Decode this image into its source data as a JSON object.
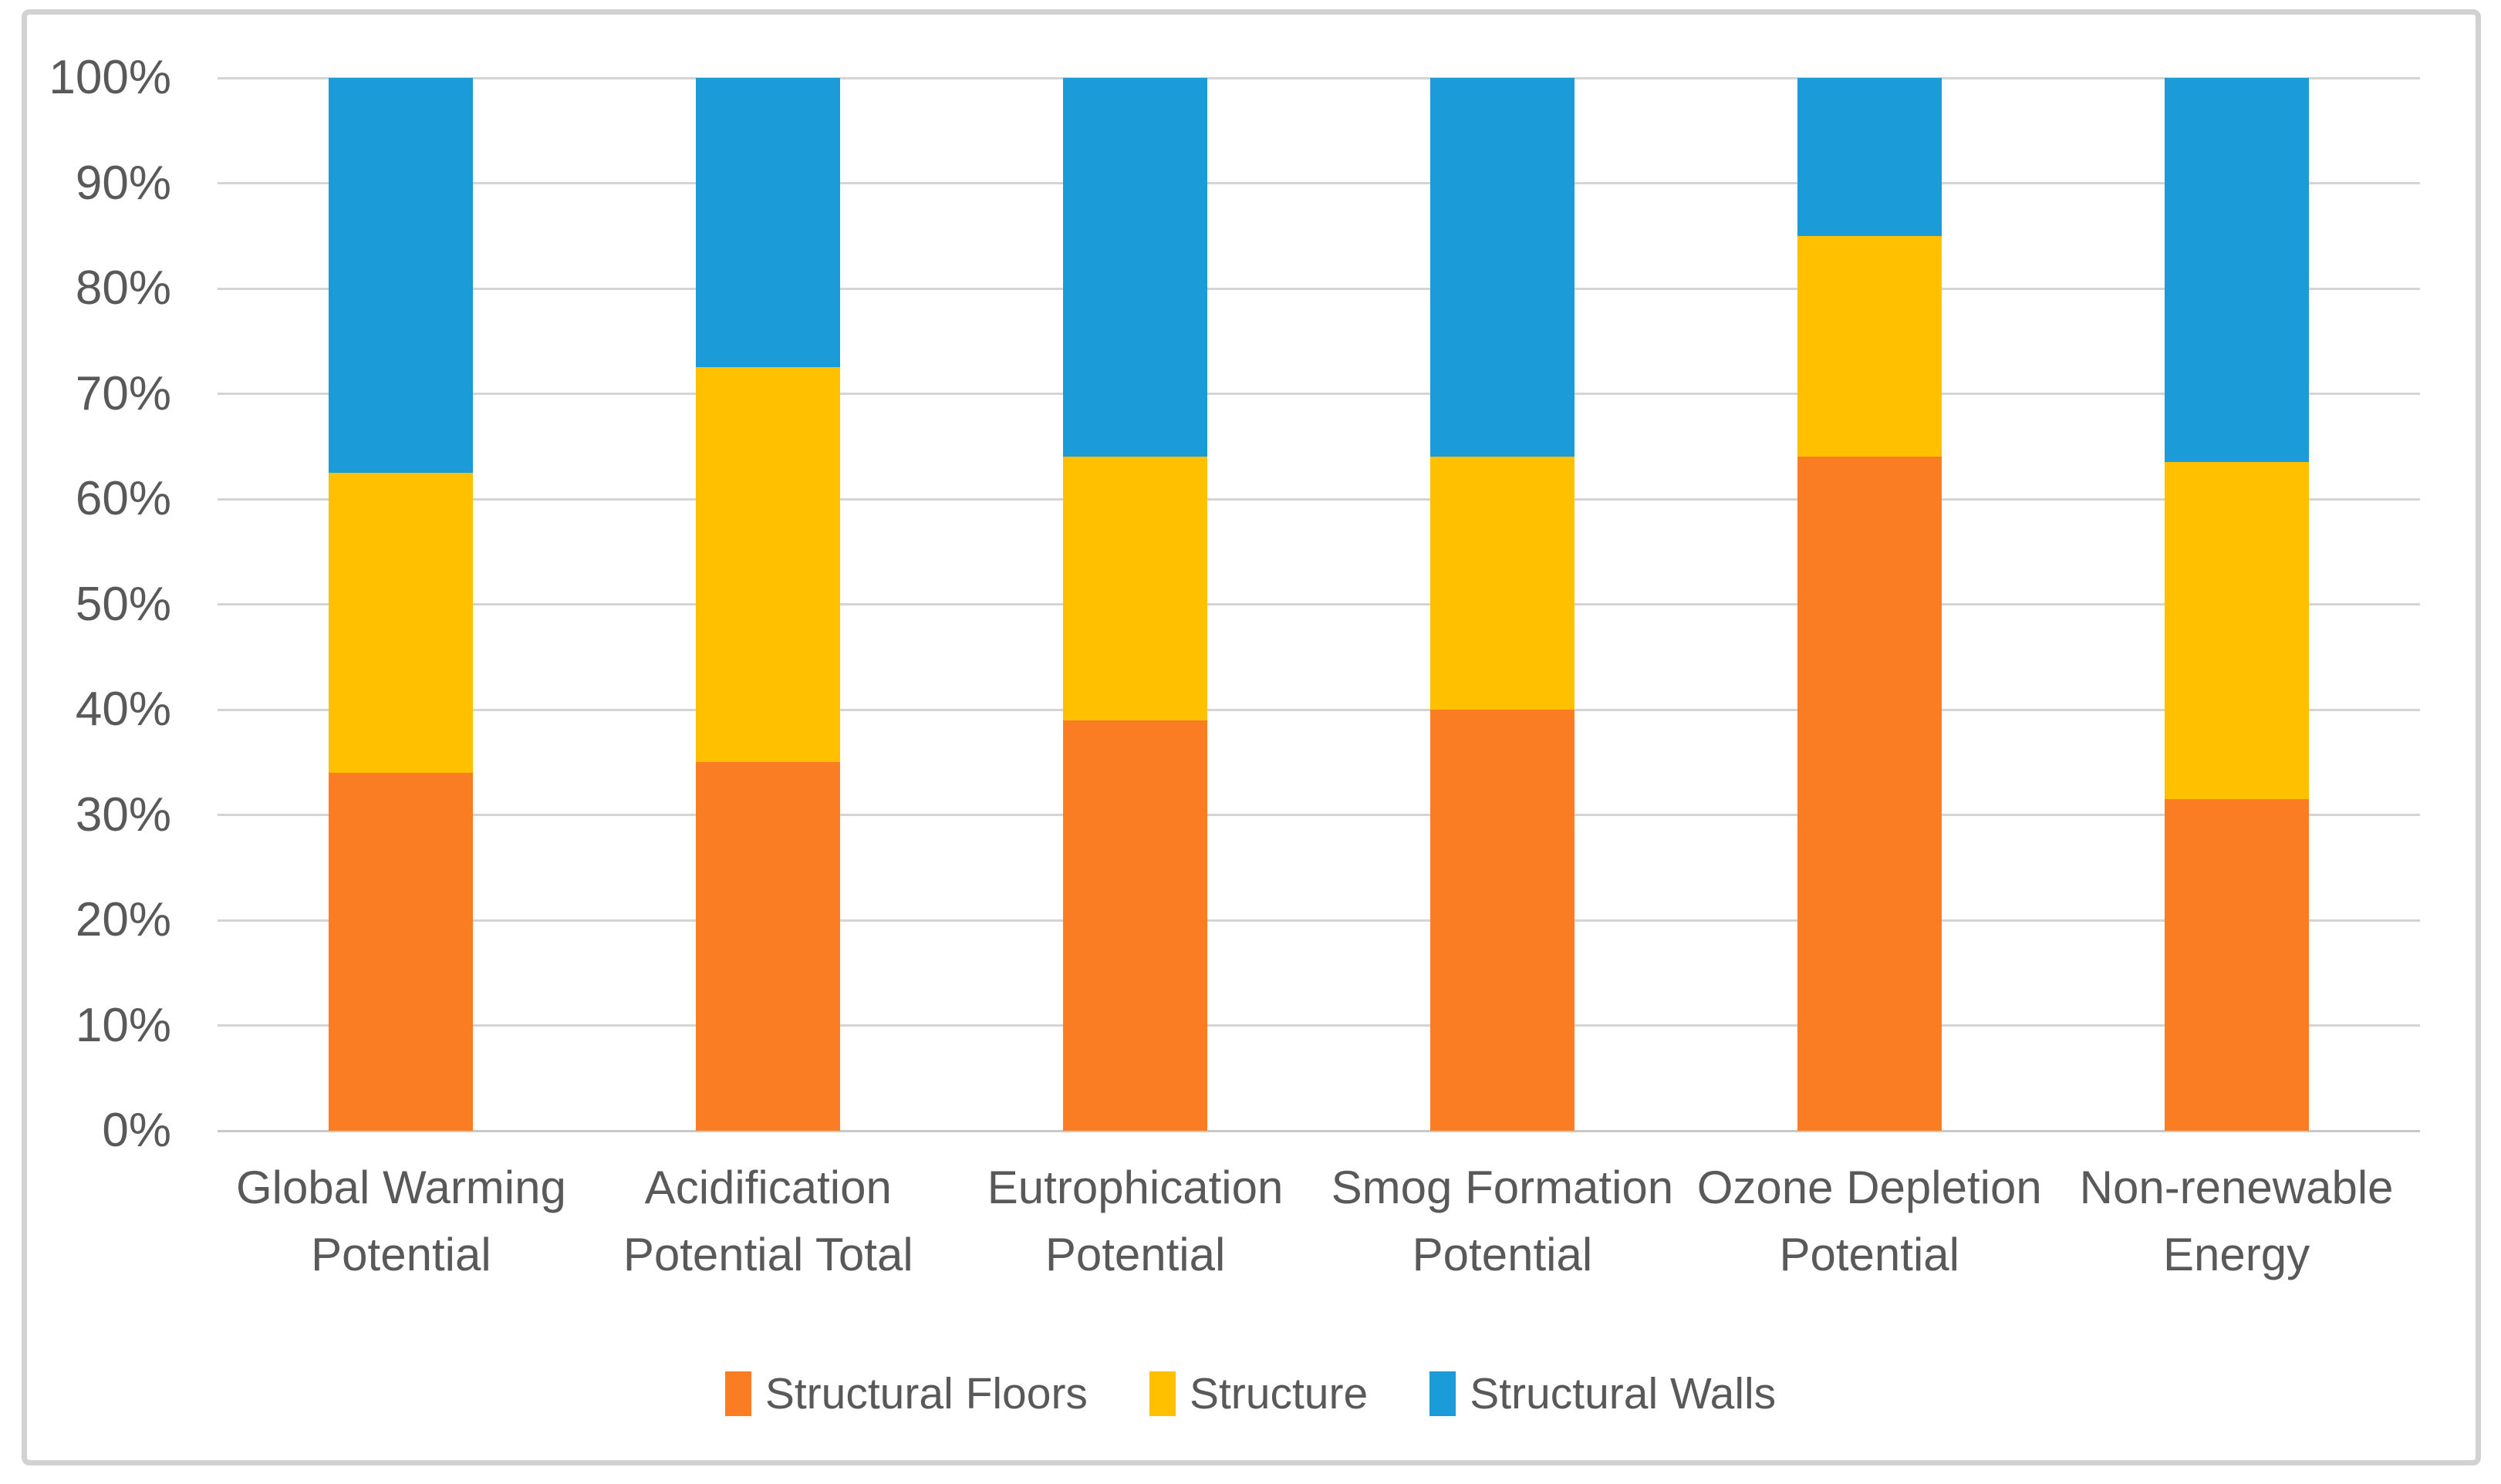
{
  "figure": {
    "background": "#ffffff",
    "frame_border_color": "#d2d2d2",
    "gridline_color": "#d4d4d4",
    "text_color": "#595959"
  },
  "chart_data": {
    "type": "bar",
    "stacked": true,
    "percent_stacked": true,
    "title": "",
    "xlabel": "",
    "ylabel": "",
    "ylim": [
      0,
      100
    ],
    "grid": true,
    "legend_position": "bottom",
    "categories": [
      "Global Warming Potential",
      "Acidification Potential Total",
      "Eutrophication Potential",
      "Smog Formation Potential",
      "Ozone Depletion Potential",
      "Non-renewable Energy"
    ],
    "series": [
      {
        "name": "Structural Floors",
        "color": "#fa7d24",
        "values": [
          34,
          35,
          39,
          40,
          64,
          31.5
        ]
      },
      {
        "name": "Structure",
        "color": "#ffc000",
        "values": [
          28.5,
          37.5,
          25,
          24,
          21,
          32
        ]
      },
      {
        "name": "Structural Walls",
        "color": "#1b9cd8",
        "values": [
          37.5,
          27.5,
          36,
          36,
          15,
          36.5
        ]
      }
    ],
    "yticks": [
      "0%",
      "10%",
      "20%",
      "30%",
      "40%",
      "50%",
      "60%",
      "70%",
      "80%",
      "90%",
      "100%"
    ]
  }
}
